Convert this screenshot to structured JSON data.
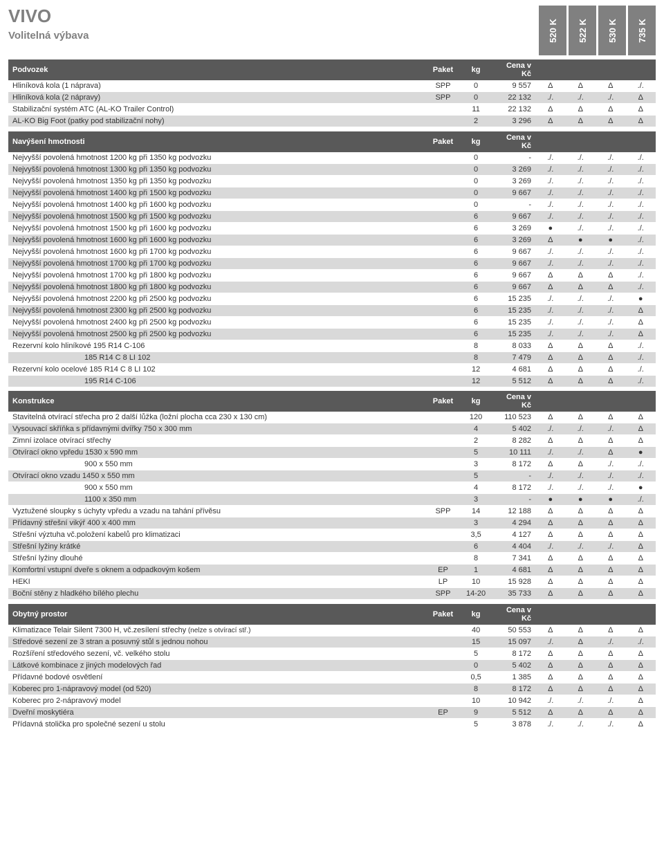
{
  "title": "VIVO",
  "subtitle": "Volitelná výbava",
  "models": [
    "520 K",
    "522 K",
    "530 K",
    "735 K"
  ],
  "colors": {
    "header_bg": "#595959",
    "header_fg": "#ffffff",
    "alt_bg": "#d9d9d9",
    "title_fg": "#808080",
    "tab_bg": "#808080"
  },
  "sections": [
    {
      "name": "Podvozek",
      "header_cols": [
        "Paket",
        "kg",
        "Cena v Kč"
      ],
      "rows": [
        {
          "desc": "Hliníková kola (1 náprava)",
          "paket": "SPP",
          "kg": "0",
          "cena": "9 557",
          "m": [
            "Δ",
            "Δ",
            "Δ",
            "./."
          ]
        },
        {
          "desc": "Hliníková kola (2 nápravy)",
          "paket": "SPP",
          "kg": "0",
          "cena": "22 132",
          "m": [
            "./.",
            "./.",
            "./.",
            "Δ"
          ]
        },
        {
          "desc": "Stabilizační systém ATC (AL-KO Trailer Control)",
          "paket": "",
          "kg": "11",
          "cena": "22 132",
          "m": [
            "Δ",
            "Δ",
            "Δ",
            "Δ"
          ]
        },
        {
          "desc": "AL-KO Big Foot (patky pod stabilizační nohy)",
          "paket": "",
          "kg": "2",
          "cena": "3 296",
          "m": [
            "Δ",
            "Δ",
            "Δ",
            "Δ"
          ]
        }
      ]
    },
    {
      "name": "Navýšení hmotnosti",
      "header_cols": [
        "Paket",
        "kg",
        "Cena v Kč"
      ],
      "rows": [
        {
          "desc": "Nejvyšší povolená hmotnost 1200 kg při 1350 kg podvozku",
          "paket": "",
          "kg": "0",
          "cena": "-",
          "m": [
            "./.",
            "./.",
            "./.",
            "./."
          ]
        },
        {
          "desc": "Nejvyšší povolená hmotnost 1300 kg při 1350 kg podvozku",
          "paket": "",
          "kg": "0",
          "cena": "3 269",
          "m": [
            "./.",
            "./.",
            "./.",
            "./."
          ]
        },
        {
          "desc": "Nejvyšší povolená hmotnost 1350 kg při 1350 kg podvozku",
          "paket": "",
          "kg": "0",
          "cena": "3 269",
          "m": [
            "./.",
            "./.",
            "./.",
            "./."
          ]
        },
        {
          "desc": "Nejvyšší povolená hmotnost 1400 kg při 1500 kg podvozku",
          "paket": "",
          "kg": "0",
          "cena": "9 667",
          "m": [
            "./.",
            "./.",
            "./.",
            "./."
          ]
        },
        {
          "desc": "Nejvyšší povolená hmotnost 1400 kg při 1600 kg podvozku",
          "paket": "",
          "kg": "0",
          "cena": "-",
          "m": [
            "./.",
            "./.",
            "./.",
            "./."
          ]
        },
        {
          "desc": "Nejvyšší povolená hmotnost 1500 kg při 1500 kg podvozku",
          "paket": "",
          "kg": "6",
          "cena": "9 667",
          "m": [
            "./.",
            "./.",
            "./.",
            "./."
          ]
        },
        {
          "desc": "Nejvyšší povolená hmotnost 1500 kg při 1600 kg podvozku",
          "paket": "",
          "kg": "6",
          "cena": "3 269",
          "m": [
            "●",
            "./.",
            "./.",
            "./."
          ]
        },
        {
          "desc": "Nejvyšší povolená hmotnost 1600 kg při 1600 kg podvozku",
          "paket": "",
          "kg": "6",
          "cena": "3 269",
          "m": [
            "Δ",
            "●",
            "●",
            "./."
          ]
        },
        {
          "desc": "Nejvyšší povolená hmotnost 1600 kg při 1700 kg podvozku",
          "paket": "",
          "kg": "6",
          "cena": "9 667",
          "m": [
            "./.",
            "./.",
            "./.",
            "./."
          ]
        },
        {
          "desc": "Nejvyšší povolená hmotnost 1700 kg při 1700 kg podvozku",
          "paket": "",
          "kg": "6",
          "cena": "9 667",
          "m": [
            "./.",
            "./.",
            "./.",
            "./."
          ]
        },
        {
          "desc": "Nejvyšší povolená hmotnost 1700 kg při 1800 kg podvozku",
          "paket": "",
          "kg": "6",
          "cena": "9 667",
          "m": [
            "Δ",
            "Δ",
            "Δ",
            "./."
          ]
        },
        {
          "desc": "Nejvyšší povolená hmotnost 1800 kg při 1800 kg podvozku",
          "paket": "",
          "kg": "6",
          "cena": "9 667",
          "m": [
            "Δ",
            "Δ",
            "Δ",
            "./."
          ]
        },
        {
          "desc": "Nejvyšší povolená hmotnost 2200 kg při 2500 kg podvozku",
          "paket": "",
          "kg": "6",
          "cena": "15 235",
          "m": [
            "./.",
            "./.",
            "./.",
            "●"
          ]
        },
        {
          "desc": "Nejvyšší povolená hmotnost 2300 kg při 2500 kg podvozku",
          "paket": "",
          "kg": "6",
          "cena": "15 235",
          "m": [
            "./.",
            "./.",
            "./.",
            "Δ"
          ]
        },
        {
          "desc": "Nejvyšší povolená hmotnost 2400 kg při 2500 kg podvozku",
          "paket": "",
          "kg": "6",
          "cena": "15 235",
          "m": [
            "./.",
            "./.",
            "./.",
            "Δ"
          ]
        },
        {
          "desc": "Nejvyšší povolená hmotnost 2500 kg při 2500 kg podvozku",
          "paket": "",
          "kg": "6",
          "cena": "15 235",
          "m": [
            "./.",
            "./.",
            "./.",
            "Δ"
          ]
        },
        {
          "desc": "Rezervní kolo hliníkové    195 R14 C-106",
          "paket": "",
          "kg": "8",
          "cena": "8 033",
          "m": [
            "Δ",
            "Δ",
            "Δ",
            "./."
          ]
        },
        {
          "desc": "185 R14 C 8 LI 102",
          "indent": true,
          "paket": "",
          "kg": "8",
          "cena": "7 479",
          "m": [
            "Δ",
            "Δ",
            "Δ",
            "./."
          ]
        },
        {
          "desc": "Rezervní kolo ocelové     185 R14 C 8 LI 102",
          "paket": "",
          "kg": "12",
          "cena": "4 681",
          "m": [
            "Δ",
            "Δ",
            "Δ",
            "./."
          ]
        },
        {
          "desc": "195 R14 C-106",
          "indent": true,
          "paket": "",
          "kg": "12",
          "cena": "5 512",
          "m": [
            "Δ",
            "Δ",
            "Δ",
            "./."
          ]
        }
      ]
    },
    {
      "name": "Konstrukce",
      "header_cols": [
        "Paket",
        "kg",
        "Cena v Kč"
      ],
      "rows": [
        {
          "desc": "Stavitelná otvírací střecha pro 2 další lůžka (ložní plocha cca 230 x 130 cm)",
          "paket": "",
          "kg": "120",
          "cena": "110 523",
          "m": [
            "Δ",
            "Δ",
            "Δ",
            "Δ"
          ]
        },
        {
          "desc": "Vysouvací skříňka s přídavnými dvířky 750 x 300 mm",
          "paket": "",
          "kg": "4",
          "cena": "5 402",
          "m": [
            "./.",
            "./.",
            "./.",
            "Δ"
          ]
        },
        {
          "desc": "Zimní izolace otvírací střechy",
          "paket": "",
          "kg": "2",
          "cena": "8 282",
          "m": [
            "Δ",
            "Δ",
            "Δ",
            "Δ"
          ]
        },
        {
          "desc": "Otvírací okno vpředu    1530 x 590 mm",
          "paket": "",
          "kg": "5",
          "cena": "10 111",
          "m": [
            "./.",
            "./.",
            "Δ",
            "●"
          ]
        },
        {
          "desc": "900 x 550 mm",
          "indent": true,
          "paket": "",
          "kg": "3",
          "cena": "8 172",
          "m": [
            "Δ",
            "Δ",
            "./.",
            "./."
          ]
        },
        {
          "desc": "Otvírací okno vzadu     1450 x 550 mm",
          "paket": "",
          "kg": "5",
          "cena": "-",
          "m": [
            "./.",
            "./.",
            "./.",
            "./."
          ]
        },
        {
          "desc": "900 x 550 mm",
          "indent": true,
          "paket": "",
          "kg": "4",
          "cena": "8 172",
          "m": [
            "./.",
            "./.",
            "./.",
            "●"
          ]
        },
        {
          "desc": "1100 x 350 mm",
          "indent": true,
          "paket": "",
          "kg": "3",
          "cena": "-",
          "m": [
            "●",
            "●",
            "●",
            "./."
          ]
        },
        {
          "desc": "Vyztužené sloupky s úchyty vpředu a vzadu na tahání přívěsu",
          "paket": "SPP",
          "kg": "14",
          "cena": "12 188",
          "m": [
            "Δ",
            "Δ",
            "Δ",
            "Δ"
          ]
        },
        {
          "desc": "Přídavný střešní vikýř 400 x 400 mm",
          "paket": "",
          "kg": "3",
          "cena": "4 294",
          "m": [
            "Δ",
            "Δ",
            "Δ",
            "Δ"
          ]
        },
        {
          "desc": "Střešní výztuha vč.položení kabelů pro klimatizaci",
          "paket": "",
          "kg": "3,5",
          "cena": "4 127",
          "m": [
            "Δ",
            "Δ",
            "Δ",
            "Δ"
          ]
        },
        {
          "desc": "Střešní lyžiny krátké",
          "paket": "",
          "kg": "6",
          "cena": "4 404",
          "m": [
            "./.",
            "./.",
            "./.",
            "Δ"
          ]
        },
        {
          "desc": "Střešní lyžiny dlouhé",
          "paket": "",
          "kg": "8",
          "cena": "7 341",
          "m": [
            "Δ",
            "Δ",
            "Δ",
            "Δ"
          ]
        },
        {
          "desc": "Komfortní vstupní dveře s oknem a odpadkovým košem",
          "paket": "EP",
          "kg": "1",
          "cena": "4 681",
          "m": [
            "Δ",
            "Δ",
            "Δ",
            "Δ"
          ]
        },
        {
          "desc": "HEKI",
          "paket": "LP",
          "kg": "10",
          "cena": "15 928",
          "m": [
            "Δ",
            "Δ",
            "Δ",
            "Δ"
          ]
        },
        {
          "desc": "Boční stěny z hladkého bílého plechu",
          "paket": "SPP",
          "kg": "14-20",
          "cena": "35 733",
          "m": [
            "Δ",
            "Δ",
            "Δ",
            "Δ"
          ]
        }
      ]
    },
    {
      "name": "Obytný prostor",
      "header_cols": [
        "Paket",
        "kg",
        "Cena v Kč"
      ],
      "rows": [
        {
          "desc": "Klimatizace Telair Silent 7300 H, vč.zesílení střechy",
          "sub": "(nelze s otvírací stř.)",
          "paket": "",
          "kg": "40",
          "cena": "50 553",
          "m": [
            "Δ",
            "Δ",
            "Δ",
            "Δ"
          ]
        },
        {
          "desc": "Středové sezení ze 3 stran a posuvný stůl s jednou nohou",
          "paket": "",
          "kg": "15",
          "cena": "15 097",
          "m": [
            "./.",
            "Δ",
            "./.",
            "./."
          ]
        },
        {
          "desc": "Rozšíření středového sezení, vč. velkého stolu",
          "paket": "",
          "kg": "5",
          "cena": "8 172",
          "m": [
            "Δ",
            "Δ",
            "Δ",
            "Δ"
          ]
        },
        {
          "desc": "Látkové kombinace z jiných modelových řad",
          "paket": "",
          "kg": "0",
          "cena": "5 402",
          "m": [
            "Δ",
            "Δ",
            "Δ",
            "Δ"
          ]
        },
        {
          "desc": "Přídavné bodové osvětlení",
          "paket": "",
          "kg": "0,5",
          "cena": "1 385",
          "m": [
            "Δ",
            "Δ",
            "Δ",
            "Δ"
          ]
        },
        {
          "desc": "Koberec pro 1-nápravový model (od 520)",
          "paket": "",
          "kg": "8",
          "cena": "8 172",
          "m": [
            "Δ",
            "Δ",
            "Δ",
            "Δ"
          ]
        },
        {
          "desc": "Koberec pro 2-nápravový model",
          "paket": "",
          "kg": "10",
          "cena": "10 942",
          "m": [
            "./.",
            "./.",
            "./.",
            "Δ"
          ]
        },
        {
          "desc": "Dveřní moskytiéra",
          "paket": "EP",
          "kg": "9",
          "cena": "5 512",
          "m": [
            "Δ",
            "Δ",
            "Δ",
            "Δ"
          ]
        },
        {
          "desc": "Přídavná stolička pro společné sezení u stolu",
          "paket": "",
          "kg": "5",
          "cena": "3 878",
          "m": [
            "./.",
            "./.",
            "./.",
            "Δ"
          ]
        }
      ]
    }
  ]
}
